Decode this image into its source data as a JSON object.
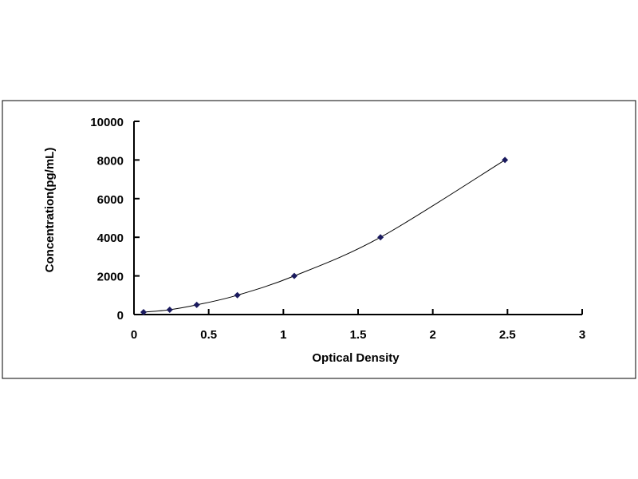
{
  "chart_data": {
    "type": "scatter",
    "title": "",
    "xlabel": "Optical Density",
    "ylabel": "Concentration(pg/mL)",
    "xlim": [
      0,
      3
    ],
    "ylim": [
      0,
      10000
    ],
    "x_ticks": [
      "0",
      "0.5",
      "1",
      "1.5",
      "2",
      "2.5",
      "3"
    ],
    "y_ticks": [
      "0",
      "2000",
      "4000",
      "6000",
      "8000",
      "10000"
    ],
    "grid": false,
    "legend": "none",
    "series": [
      {
        "x": [
          0.064,
          0.239,
          0.42,
          0.692,
          1.073,
          1.65,
          2.483
        ],
        "y": [
          125,
          250,
          500,
          1000,
          2000,
          4000,
          8000
        ],
        "marker": "diamond",
        "line": "smooth",
        "color": "#1a1a5e"
      }
    ]
  }
}
